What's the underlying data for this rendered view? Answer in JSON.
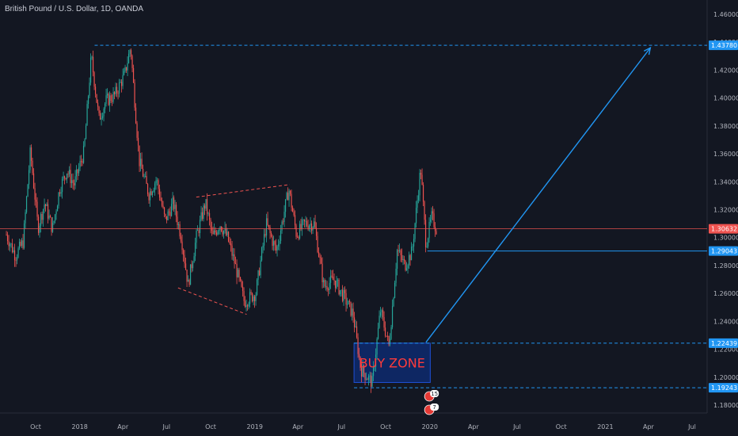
{
  "header": {
    "title": "British Pound / U.S. Dollar, 1D, OANDA"
  },
  "colors": {
    "background": "#131722",
    "bull": "#26a69a",
    "bear": "#ef5350",
    "blue": "#2196f3",
    "price_line": "#ef5350",
    "axis_text": "#b2b5be",
    "zone_fill": "#0d2e7a"
  },
  "chart_data": {
    "type": "candlestick",
    "title": "British Pound / U.S. Dollar, 1D, OANDA",
    "x_axis": {
      "ticks": [
        {
          "label": "Oct",
          "t": "2017-10-01"
        },
        {
          "label": "2018",
          "t": "2018-01-01"
        },
        {
          "label": "Apr",
          "t": "2018-04-01"
        },
        {
          "label": "Jul",
          "t": "2018-07-01"
        },
        {
          "label": "Oct",
          "t": "2018-10-01"
        },
        {
          "label": "2019",
          "t": "2019-01-01"
        },
        {
          "label": "Apr",
          "t": "2019-04-01"
        },
        {
          "label": "Jul",
          "t": "2019-07-01"
        },
        {
          "label": "Oct",
          "t": "2019-10-01"
        },
        {
          "label": "2020",
          "t": "2020-01-01"
        },
        {
          "label": "Apr",
          "t": "2020-04-01"
        },
        {
          "label": "Jul",
          "t": "2020-07-01"
        },
        {
          "label": "Oct",
          "t": "2020-10-01"
        },
        {
          "label": "2021",
          "t": "2021-01-01"
        },
        {
          "label": "Apr",
          "t": "2021-04-01"
        },
        {
          "label": "Jul",
          "t": "2021-07-01"
        }
      ]
    },
    "y_axis": {
      "ticks": [
        "1.46000",
        "1.44000",
        "1.42000",
        "1.40000",
        "1.38000",
        "1.36000",
        "1.34000",
        "1.32000",
        "1.30000",
        "1.28000",
        "1.26000",
        "1.24000",
        "1.22000",
        "1.20000",
        "1.18000"
      ],
      "range": [
        1.165,
        1.47
      ]
    },
    "price_path": [
      {
        "t": "2017-08-01",
        "p": 1.302
      },
      {
        "t": "2017-08-20",
        "p": 1.287
      },
      {
        "t": "2017-09-05",
        "p": 1.297
      },
      {
        "t": "2017-09-20",
        "p": 1.362
      },
      {
        "t": "2017-10-06",
        "p": 1.307
      },
      {
        "t": "2017-10-20",
        "p": 1.325
      },
      {
        "t": "2017-11-05",
        "p": 1.306
      },
      {
        "t": "2017-11-20",
        "p": 1.335
      },
      {
        "t": "2017-12-05",
        "p": 1.348
      },
      {
        "t": "2017-12-20",
        "p": 1.338
      },
      {
        "t": "2018-01-10",
        "p": 1.362
      },
      {
        "t": "2018-01-25",
        "p": 1.43
      },
      {
        "t": "2018-02-10",
        "p": 1.385
      },
      {
        "t": "2018-02-25",
        "p": 1.398
      },
      {
        "t": "2018-03-15",
        "p": 1.402
      },
      {
        "t": "2018-04-05",
        "p": 1.417
      },
      {
        "t": "2018-04-17",
        "p": 1.437
      },
      {
        "t": "2018-05-05",
        "p": 1.355
      },
      {
        "t": "2018-05-25",
        "p": 1.331
      },
      {
        "t": "2018-06-10",
        "p": 1.342
      },
      {
        "t": "2018-06-28",
        "p": 1.312
      },
      {
        "t": "2018-07-15",
        "p": 1.325
      },
      {
        "t": "2018-08-01",
        "p": 1.3
      },
      {
        "t": "2018-08-15",
        "p": 1.266
      },
      {
        "t": "2018-09-01",
        "p": 1.3
      },
      {
        "t": "2018-09-20",
        "p": 1.325
      },
      {
        "t": "2018-10-05",
        "p": 1.3
      },
      {
        "t": "2018-10-20",
        "p": 1.31
      },
      {
        "t": "2018-11-05",
        "p": 1.3
      },
      {
        "t": "2018-11-20",
        "p": 1.282
      },
      {
        "t": "2018-12-10",
        "p": 1.254
      },
      {
        "t": "2019-01-03",
        "p": 1.26
      },
      {
        "t": "2019-01-25",
        "p": 1.31
      },
      {
        "t": "2019-02-15",
        "p": 1.29
      },
      {
        "t": "2019-03-13",
        "p": 1.335
      },
      {
        "t": "2019-03-29",
        "p": 1.302
      },
      {
        "t": "2019-04-15",
        "p": 1.31
      },
      {
        "t": "2019-05-05",
        "p": 1.31
      },
      {
        "t": "2019-05-25",
        "p": 1.265
      },
      {
        "t": "2019-06-15",
        "p": 1.27
      },
      {
        "t": "2019-07-05",
        "p": 1.258
      },
      {
        "t": "2019-07-25",
        "p": 1.245
      },
      {
        "t": "2019-08-10",
        "p": 1.206
      },
      {
        "t": "2019-09-03",
        "p": 1.196
      },
      {
        "t": "2019-09-20",
        "p": 1.248
      },
      {
        "t": "2019-10-08",
        "p": 1.222
      },
      {
        "t": "2019-10-25",
        "p": 1.291
      },
      {
        "t": "2019-11-10",
        "p": 1.28
      },
      {
        "t": "2019-11-25",
        "p": 1.29
      },
      {
        "t": "2019-12-13",
        "p": 1.35
      },
      {
        "t": "2019-12-24",
        "p": 1.295
      },
      {
        "t": "2020-01-05",
        "p": 1.315
      },
      {
        "t": "2020-01-15",
        "p": 1.306
      }
    ],
    "price_line": {
      "value": "1.30632",
      "level": 1.30632
    },
    "levels": [
      {
        "value": "1.43780",
        "level": 1.4378,
        "from": "2018-02-01",
        "style": "dashed"
      },
      {
        "value": "1.29043",
        "level": 1.29043,
        "from": "2019-12-27",
        "style": "solid"
      },
      {
        "value": "1.22439",
        "level": 1.22439,
        "from": "2019-07-27",
        "style": "dashed"
      },
      {
        "value": "1.19243",
        "level": 1.19243,
        "from": "2019-07-27",
        "style": "dashed"
      }
    ],
    "trendlines": [
      {
        "t1": "2018-09-01",
        "p1": 1.329,
        "t2": "2019-03-15",
        "p2": 1.338
      },
      {
        "t1": "2018-07-25",
        "p1": 1.264,
        "t2": "2018-12-15",
        "p2": 1.245
      }
    ],
    "arrow": {
      "t1": "2019-12-24",
      "p1": 1.225,
      "t2": "2021-04-05",
      "p2": 1.436
    },
    "buy_zone": {
      "label": "BUY ZONE",
      "t1": "2019-07-27",
      "t2": "2020-01-02",
      "p_top": 1.2244,
      "p_bottom": 1.1962
    },
    "badges": [
      {
        "label": "15"
      },
      {
        "label": "7"
      }
    ]
  }
}
